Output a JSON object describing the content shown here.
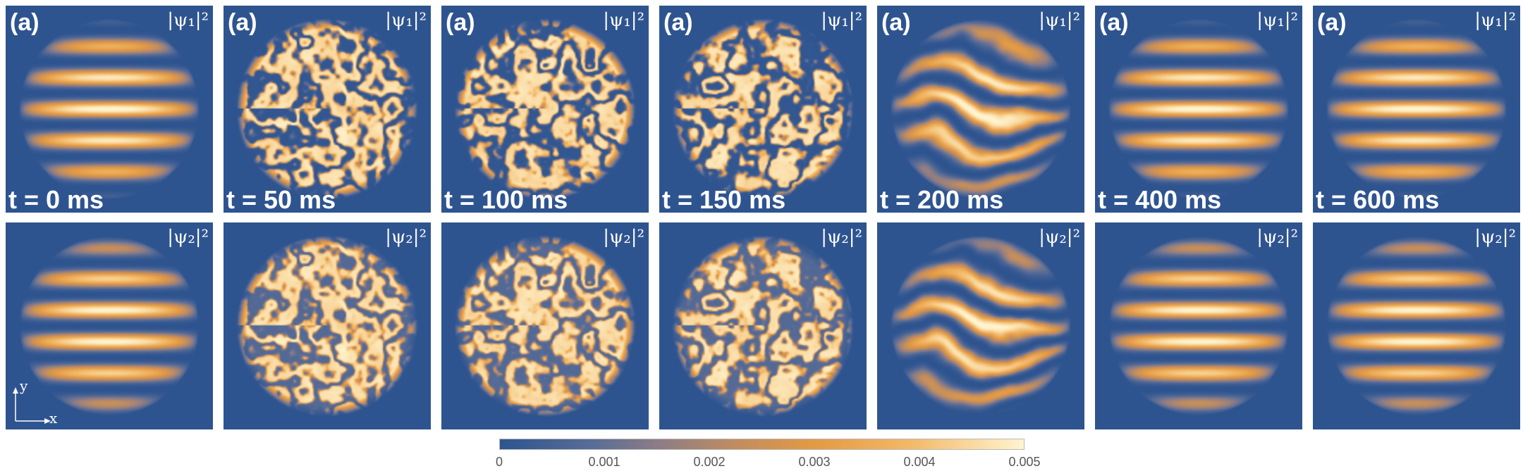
{
  "panel_letter": "(a)",
  "columns": [
    {
      "time": "t = 0 ms",
      "pattern": "stripes"
    },
    {
      "time": "t = 50 ms",
      "pattern": "labyrinth"
    },
    {
      "time": "t = 100 ms",
      "pattern": "labyrinth"
    },
    {
      "time": "t = 150 ms",
      "pattern": "labyrinth"
    },
    {
      "time": "t = 200 ms",
      "pattern": "distorted-stripes"
    },
    {
      "time": "t = 400 ms",
      "pattern": "stripes"
    },
    {
      "time": "t = 600 ms",
      "pattern": "stripes"
    }
  ],
  "rows": [
    {
      "field": "|ψ₁|²"
    },
    {
      "field": "|ψ₂|²"
    }
  ],
  "axes": {
    "y": "y",
    "x": "x"
  },
  "colorbar": {
    "ticks": [
      "0",
      "0.001",
      "0.002",
      "0.003",
      "0.004",
      "0.005"
    ],
    "range": [
      0,
      0.005
    ],
    "colors": {
      "low": "#2e5490",
      "mid": "#e39a44",
      "high": "#fff4cf"
    }
  }
}
